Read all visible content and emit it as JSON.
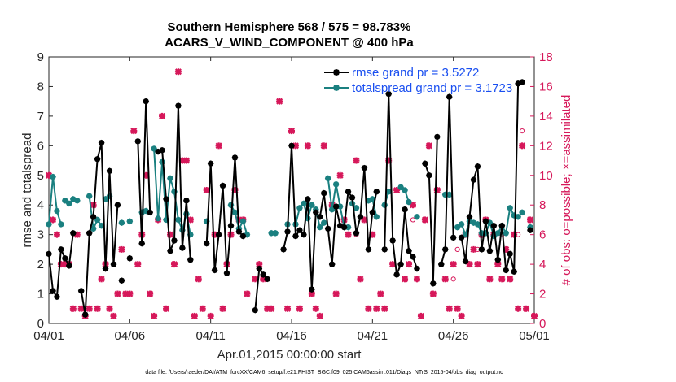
{
  "chart_data": {
    "type": "line",
    "title_line1": "Southern Hemisphere 568 / 575 = 98.783%",
    "title_line2": "ACARS_V_WIND_COMPONENT @ 400 hPa",
    "xlabel": "Apr.01,2015 00:00:00 start",
    "ylabel": "rmse and totalspread",
    "ylabel_right": "# of obs: o=possible; ×=assimilated",
    "ylim": [
      0,
      9
    ],
    "ylim_right": [
      0,
      18
    ],
    "xlim": [
      0,
      30
    ],
    "x_ticks": [
      0,
      5,
      10,
      15,
      20,
      25,
      30
    ],
    "x_tick_labels": [
      "04/01",
      "04/06",
      "04/11",
      "04/16",
      "04/21",
      "04/26",
      "05/01"
    ],
    "y_ticks": [
      "0",
      "1",
      "2",
      "3",
      "4",
      "5",
      "6",
      "7",
      "8",
      "9"
    ],
    "y_ticks_right": [
      "0",
      "2",
      "4",
      "6",
      "8",
      "10",
      "12",
      "14",
      "16",
      "18"
    ],
    "footer": "data file: /Users/raeder/DAI/ATM_forcXX/CAM6_setup/f.e21.FHIST_BGC.f09_025.CAM6assim.011/Diags_NTrS_2015-04/obs_diag_output.nc",
    "colors": {
      "rmse": "#000000",
      "spread": "#1a8080",
      "obs": "#d6185a",
      "legend_text": "#1a4ff0"
    },
    "series": [
      {
        "name": "rmse grand pr = 3.5272",
        "segments": [
          [
            [
              0,
              2.35
            ],
            [
              0.25,
              1.1
            ],
            [
              0.5,
              0.9
            ],
            [
              0.75,
              2.5
            ],
            [
              1.0,
              2.2
            ],
            [
              1.25,
              1.95
            ],
            [
              1.5,
              3.05
            ]
          ],
          [
            [
              2.0,
              1.1
            ],
            [
              2.25,
              0.3
            ],
            [
              2.5,
              3.05
            ],
            [
              2.75,
              3.6
            ],
            [
              3.0,
              5.55
            ],
            [
              3.25,
              6.1
            ],
            [
              3.5,
              1.85
            ],
            [
              3.75,
              5.15
            ],
            [
              4.0,
              2.0
            ],
            [
              4.25,
              4.0
            ]
          ],
          [
            [
              4.5,
              1.45
            ]
          ],
          [
            [
              5.0,
              2.2
            ]
          ],
          [
            [
              5.5,
              6.15
            ],
            [
              5.75,
              2.7
            ],
            [
              6.0,
              7.5
            ],
            [
              6.25,
              3.75
            ]
          ],
          [
            [
              6.75,
              5.8
            ],
            [
              7.0,
              5.85
            ],
            [
              7.25,
              4.2
            ],
            [
              7.5,
              2.45
            ],
            [
              7.75,
              2.8
            ],
            [
              8.0,
              7.35
            ],
            [
              8.25,
              2.55
            ],
            [
              8.5,
              4.15
            ],
            [
              8.75,
              2.15
            ]
          ],
          [
            [
              9.75,
              2.7
            ],
            [
              10.0,
              5.4
            ],
            [
              10.25,
              1.8
            ],
            [
              10.5,
              3.0
            ],
            [
              10.75,
              4.65
            ],
            [
              11.0,
              1.7
            ],
            [
              11.25,
              3.3
            ],
            [
              11.5,
              5.6
            ],
            [
              11.75,
              3.1
            ],
            [
              12.0,
              2.95
            ]
          ],
          [
            [
              12.75,
              0.45
            ],
            [
              13.0,
              1.85
            ],
            [
              13.25,
              1.65
            ],
            [
              13.5,
              1.5
            ]
          ],
          [
            [
              14.5,
              2.5
            ],
            [
              14.75,
              3.1
            ],
            [
              15.0,
              6.0
            ],
            [
              15.25,
              2.95
            ],
            [
              15.5,
              3.15
            ],
            [
              15.75,
              3.0
            ],
            [
              16.0,
              4.2
            ],
            [
              16.25,
              1.15
            ],
            [
              16.5,
              3.75
            ],
            [
              16.75,
              3.6
            ],
            [
              17.0,
              4.4
            ],
            [
              17.25,
              3.2
            ],
            [
              17.5,
              2.0
            ],
            [
              17.75,
              3.95
            ],
            [
              18.0,
              3.3
            ],
            [
              18.25,
              3.25
            ],
            [
              18.5,
              4.45
            ],
            [
              18.75,
              4.25
            ],
            [
              19.0,
              3.05
            ],
            [
              19.25,
              3.6
            ],
            [
              19.5,
              5.25
            ],
            [
              19.75,
              2.5
            ],
            [
              20.0,
              3.75
            ],
            [
              20.25,
              4.45
            ]
          ],
          [
            [
              20.75,
              2.5
            ],
            [
              21.0,
              7.75
            ],
            [
              21.25,
              2.8
            ],
            [
              21.5,
              1.65
            ],
            [
              21.75,
              2.0
            ],
            [
              22.0,
              3.85
            ],
            [
              22.25,
              2.45
            ],
            [
              22.5,
              2.25
            ],
            [
              22.75,
              1.85
            ]
          ],
          [
            [
              23.25,
              5.4
            ],
            [
              23.5,
              5.0
            ],
            [
              23.75,
              1.35
            ],
            [
              24.0,
              6.3
            ]
          ],
          [
            [
              24.25,
              2.0
            ],
            [
              24.5,
              2.5
            ],
            [
              24.75,
              7.65
            ],
            [
              25.0,
              2.9
            ]
          ],
          [
            [
              25.5,
              2.9
            ],
            [
              25.75,
              2.1
            ],
            [
              26.0,
              3.6
            ],
            [
              26.25,
              4.85
            ],
            [
              26.5,
              5.3
            ],
            [
              26.75,
              2.5
            ],
            [
              27.0,
              3.45
            ],
            [
              27.25,
              2.45
            ],
            [
              27.5,
              3.3
            ],
            [
              27.75,
              2.15
            ],
            [
              28.0,
              3.3
            ],
            [
              28.25,
              1.8
            ],
            [
              28.5,
              2.35
            ],
            [
              28.75,
              1.75
            ],
            [
              29.0,
              8.1
            ],
            [
              29.25,
              8.15
            ]
          ],
          [
            [
              29.75,
              3.15
            ]
          ]
        ]
      },
      {
        "name": "totalspread grand pr = 3.1723",
        "segments": [
          [
            [
              0,
              3.35
            ],
            [
              0.25,
              4.95
            ],
            [
              0.5,
              3.8
            ],
            [
              0.75,
              3.35
            ]
          ],
          [
            [
              1.0,
              4.15
            ],
            [
              1.25,
              4.05
            ],
            [
              1.5,
              4.2
            ],
            [
              1.75,
              4.15
            ]
          ],
          [
            [
              2.5,
              4.3
            ],
            [
              2.75,
              3.2
            ],
            [
              3.0,
              3.5
            ],
            [
              3.25,
              3.3
            ]
          ],
          [
            [
              3.5,
              4.2
            ],
            [
              3.75,
              4.3
            ]
          ],
          [
            [
              4.5,
              3.4
            ]
          ],
          [
            [
              5.0,
              3.45
            ]
          ],
          [
            [
              5.75,
              3.75
            ],
            [
              6.0,
              3.8
            ]
          ],
          [
            [
              6.5,
              5.9
            ],
            [
              6.75,
              3.55
            ],
            [
              7.0,
              5.45
            ],
            [
              7.25,
              3.5
            ],
            [
              7.5,
              4.9
            ],
            [
              7.75,
              4.45
            ],
            [
              8.0,
              3.5
            ],
            [
              8.25,
              3.15
            ],
            [
              8.5,
              3.7
            ],
            [
              8.75,
              3.0
            ]
          ],
          [
            [
              9.75,
              3.45
            ]
          ],
          [
            [
              11.25,
              4.0
            ],
            [
              11.5,
              3.75
            ],
            [
              11.75,
              3.2
            ],
            [
              12.0,
              3.45
            ],
            [
              12.25,
              3.0
            ]
          ],
          [
            [
              13.75,
              3.05
            ],
            [
              14.0,
              3.05
            ]
          ],
          [
            [
              14.75,
              3.35
            ]
          ],
          [
            [
              15.25,
              3.35
            ],
            [
              15.5,
              3.9
            ],
            [
              15.75,
              4.05
            ],
            [
              16.0,
              3.55
            ],
            [
              16.25,
              4.0
            ],
            [
              16.5,
              3.85
            ],
            [
              16.75,
              3.25
            ],
            [
              17.0,
              3.4
            ]
          ],
          [
            [
              17.25,
              4.9
            ],
            [
              17.5,
              3.85
            ],
            [
              17.75,
              4.7
            ],
            [
              18.0,
              3.95
            ],
            [
              18.25,
              3.25
            ],
            [
              18.5,
              3.25
            ]
          ],
          [
            [
              18.75,
              4.05
            ],
            [
              19.0,
              3.9
            ]
          ],
          [
            [
              19.75,
              4.15
            ],
            [
              20.0,
              4.2
            ],
            [
              20.25,
              3.6
            ]
          ],
          [
            [
              20.75,
              4.0
            ],
            [
              21.0,
              4.45
            ]
          ],
          [
            [
              21.75,
              4.6
            ],
            [
              22.0,
              4.5
            ],
            [
              22.25,
              4.1
            ]
          ],
          [
            [
              22.75,
              3.6
            ]
          ],
          [
            [
              24.5,
              4.35
            ],
            [
              24.75,
              4.35
            ]
          ],
          [
            [
              25.25,
              3.25
            ],
            [
              25.5,
              3.35
            ],
            [
              25.75,
              3.0
            ],
            [
              26.0,
              3.45
            ],
            [
              26.25,
              3.4
            ],
            [
              26.5,
              3.35
            ],
            [
              26.75,
              3.05
            ],
            [
              27.0,
              3.05
            ],
            [
              27.25,
              3.4
            ],
            [
              27.5,
              2.95
            ],
            [
              27.75,
              3.05
            ],
            [
              28.0,
              3.3
            ],
            [
              28.25,
              3.05
            ],
            [
              28.5,
              3.9
            ],
            [
              28.75,
              3.65
            ],
            [
              29.0,
              3.6
            ],
            [
              29.25,
              3.75
            ]
          ],
          [
            [
              29.75,
              3.25
            ]
          ]
        ]
      }
    ],
    "obs_assimilated": [
      [
        0,
        10
      ],
      [
        0.25,
        7
      ],
      [
        0.5,
        6
      ],
      [
        0.75,
        4
      ],
      [
        1.0,
        4
      ],
      [
        1.25,
        4
      ],
      [
        1.5,
        1
      ],
      [
        1.75,
        6
      ],
      [
        2.0,
        1
      ],
      [
        2.25,
        0.5
      ],
      [
        2.5,
        1
      ],
      [
        2.75,
        8
      ],
      [
        3.0,
        1
      ],
      [
        3.25,
        3
      ],
      [
        3.5,
        4
      ],
      [
        3.75,
        1
      ],
      [
        4.0,
        0.5
      ],
      [
        4.25,
        2
      ],
      [
        4.5,
        5
      ],
      [
        4.75,
        2
      ],
      [
        5.0,
        2
      ],
      [
        5.25,
        13
      ],
      [
        5.5,
        4
      ],
      [
        5.75,
        6
      ],
      [
        6.0,
        10
      ],
      [
        6.25,
        2
      ],
      [
        6.5,
        0.5
      ],
      [
        6.75,
        7
      ],
      [
        7.0,
        14
      ],
      [
        7.25,
        1
      ],
      [
        7.5,
        6
      ],
      [
        7.75,
        4
      ],
      [
        8.0,
        17
      ],
      [
        8.25,
        11
      ],
      [
        8.5,
        11
      ],
      [
        8.75,
        7
      ],
      [
        9.0,
        0.5
      ],
      [
        9.25,
        3
      ],
      [
        9.5,
        1
      ],
      [
        9.75,
        9
      ],
      [
        10.0,
        0.5
      ],
      [
        10.25,
        6
      ],
      [
        10.5,
        12
      ],
      [
        10.75,
        1
      ],
      [
        11.0,
        4
      ],
      [
        11.25,
        6
      ],
      [
        11.5,
        9
      ],
      [
        11.75,
        7
      ],
      [
        12.0,
        7
      ],
      [
        12.25,
        2
      ],
      [
        12.75,
        3
      ],
      [
        13.0,
        4
      ],
      [
        13.25,
        3
      ],
      [
        13.5,
        1
      ],
      [
        13.75,
        1
      ],
      [
        14.25,
        15
      ],
      [
        14.75,
        1
      ],
      [
        15.0,
        13
      ],
      [
        15.25,
        12
      ],
      [
        15.5,
        1
      ],
      [
        16.0,
        12
      ],
      [
        16.25,
        2
      ],
      [
        16.5,
        1
      ],
      [
        16.75,
        0.5
      ],
      [
        17.0,
        12
      ],
      [
        17.5,
        8
      ],
      [
        17.75,
        2
      ],
      [
        18.0,
        10
      ],
      [
        18.25,
        7
      ],
      [
        18.5,
        6
      ],
      [
        19.0,
        11
      ],
      [
        19.25,
        3
      ],
      [
        19.5,
        7
      ],
      [
        19.75,
        1
      ],
      [
        20.0,
        6
      ],
      [
        20.25,
        1
      ],
      [
        20.5,
        2
      ],
      [
        20.75,
        1
      ],
      [
        21.0,
        11
      ],
      [
        21.25,
        4
      ],
      [
        21.5,
        9
      ],
      [
        22.0,
        3
      ],
      [
        22.25,
        4
      ],
      [
        22.5,
        8
      ],
      [
        22.75,
        3
      ],
      [
        23.0,
        0.5
      ],
      [
        23.25,
        7
      ],
      [
        23.5,
        12
      ],
      [
        23.75,
        2
      ],
      [
        24.0,
        9
      ],
      [
        24.5,
        3
      ],
      [
        24.75,
        1
      ],
      [
        25.0,
        4
      ],
      [
        25.25,
        1
      ],
      [
        25.5,
        0.5
      ],
      [
        25.75,
        6
      ],
      [
        26.0,
        4
      ],
      [
        26.25,
        5
      ],
      [
        26.5,
        4
      ],
      [
        26.75,
        6
      ],
      [
        27.0,
        7
      ],
      [
        27.25,
        3
      ],
      [
        27.5,
        6
      ],
      [
        27.75,
        4
      ],
      [
        28.0,
        3
      ],
      [
        28.25,
        5
      ],
      [
        28.5,
        3
      ],
      [
        28.75,
        6
      ],
      [
        29.0,
        1
      ],
      [
        29.25,
        12
      ],
      [
        29.5,
        1
      ],
      [
        29.75,
        7
      ],
      [
        30.0,
        0.5
      ]
    ],
    "obs_possible": [
      [
        19.0,
        6
      ],
      [
        20.0,
        6
      ],
      [
        22.5,
        7
      ],
      [
        25.0,
        3
      ],
      [
        25.25,
        5
      ],
      [
        26.5,
        5
      ],
      [
        28.0,
        6
      ],
      [
        29.0,
        6
      ],
      [
        29.25,
        13
      ]
    ]
  }
}
